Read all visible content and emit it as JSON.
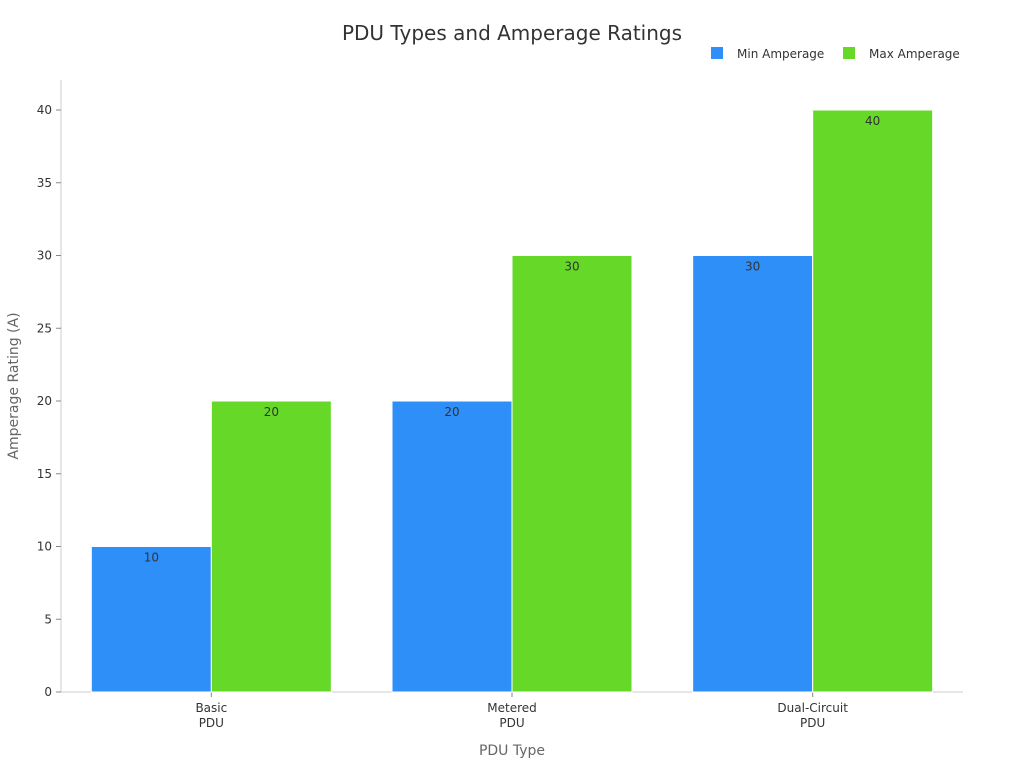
{
  "chart_data": {
    "type": "bar",
    "title": "PDU Types and Amperage Ratings",
    "xlabel": "PDU Type",
    "ylabel": "Amperage Rating (A)",
    "categories": [
      [
        "Basic",
        "PDU"
      ],
      [
        "Metered",
        "PDU"
      ],
      [
        "Dual-Circuit",
        "PDU"
      ]
    ],
    "series": [
      {
        "name": "Min Amperage",
        "values": [
          10,
          20,
          30
        ],
        "color": "#2f8ff8"
      },
      {
        "name": "Max Amperage",
        "values": [
          20,
          30,
          40
        ],
        "color": "#66d928"
      }
    ],
    "ylim": [
      0,
      40
    ],
    "yticks": [
      0,
      5,
      10,
      15,
      20,
      25,
      30,
      35,
      40
    ],
    "grid": false,
    "legend_position": "top-right",
    "data_labels": true
  }
}
